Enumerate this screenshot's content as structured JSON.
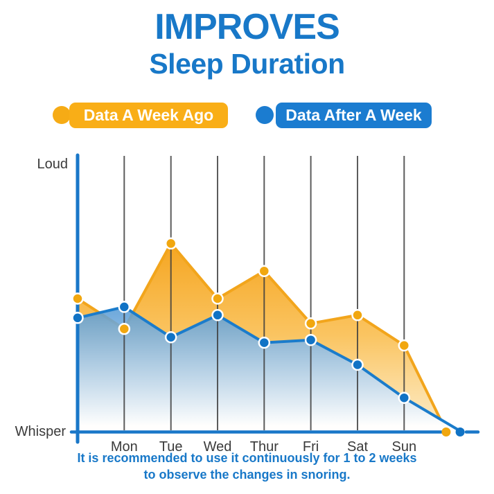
{
  "header": {
    "title_line1": "IMPROVES",
    "title_line2": "Sleep Duration",
    "title_color": "#1878C8"
  },
  "legend": [
    {
      "label": "Data A Week Ago",
      "color": "#F9AE17",
      "text_color": "#FFFFFF"
    },
    {
      "label": "Data After A Week",
      "color": "#1B7CD0",
      "text_color": "#FFFFFF"
    }
  ],
  "chart_data": {
    "type": "area",
    "title": "IMPROVES Sleep Duration",
    "categories": [
      "Mon",
      "Tue",
      "Wed",
      "Thur",
      "Fri",
      "Sat",
      "Sun"
    ],
    "y_axis": {
      "top_label": "Loud",
      "bottom_label": "Whisper",
      "ylim": [
        0,
        10
      ]
    },
    "grid": "vertical day lines",
    "legend_position": "top",
    "series": [
      {
        "name": "Data A Week Ago",
        "key": "week-ago",
        "line_color": "#F2A51C",
        "dot_color": "#F1A70F",
        "points": [
          [
            0,
            4.8
          ],
          [
            1,
            3.7
          ],
          [
            2,
            6.8
          ],
          [
            3,
            4.8
          ],
          [
            4,
            5.8
          ],
          [
            5,
            3.9
          ],
          [
            6,
            4.2
          ],
          [
            7,
            3.1
          ],
          [
            7.9,
            0
          ]
        ]
      },
      {
        "name": "Data After A Week",
        "key": "after-week",
        "line_color": "#1B7CCB",
        "dot_color": "#1173C5",
        "points": [
          [
            0,
            4.1
          ],
          [
            1,
            4.5
          ],
          [
            2,
            3.4
          ],
          [
            3,
            4.2
          ],
          [
            4,
            3.2
          ],
          [
            5,
            3.3
          ],
          [
            6,
            2.4
          ],
          [
            7,
            1.2
          ],
          [
            8.2,
            0
          ]
        ]
      }
    ]
  },
  "footer": {
    "line1": "It is recommended to use it continuously for 1 to 2 weeks",
    "line2": "to observe the changes in snoring."
  }
}
